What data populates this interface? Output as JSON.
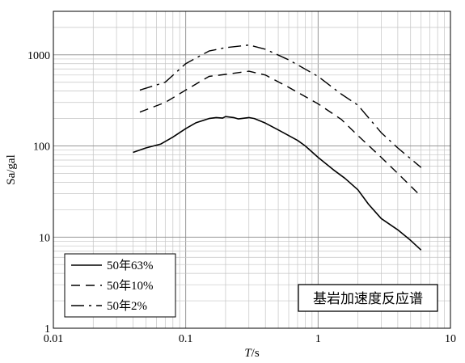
{
  "chart_data": {
    "type": "line",
    "xscale": "log",
    "yscale": "log",
    "xlim": [
      0.01,
      10
    ],
    "ylim": [
      1,
      3000
    ],
    "xlabel_italic": "T",
    "xlabel_rest": "/s",
    "ylabel": "Sa/gal",
    "xticks": [
      {
        "value": 0.01,
        "label": "0.01"
      },
      {
        "value": 0.1,
        "label": "0.1"
      },
      {
        "value": 1,
        "label": "1"
      },
      {
        "value": 10,
        "label": "10"
      }
    ],
    "yticks": [
      {
        "value": 1,
        "label": "1"
      },
      {
        "value": 10,
        "label": "10"
      },
      {
        "value": 100,
        "label": "100"
      },
      {
        "value": 1000,
        "label": "1000"
      }
    ],
    "grid": true,
    "legend_position": "bottom-left",
    "annotation": "基岩加速度反应谱",
    "series": [
      {
        "name": "50年63%",
        "style": "solid",
        "x": [
          0.04,
          0.05,
          0.065,
          0.08,
          0.1,
          0.12,
          0.15,
          0.17,
          0.19,
          0.2,
          0.23,
          0.25,
          0.3,
          0.33,
          0.4,
          0.5,
          0.6,
          0.7,
          0.8,
          1.0,
          1.3,
          1.6,
          2.0,
          2.4,
          3.0,
          4.0,
          5.0,
          6.0
        ],
        "y": [
          85,
          95,
          105,
          125,
          155,
          180,
          200,
          205,
          202,
          210,
          205,
          198,
          205,
          200,
          178,
          150,
          130,
          115,
          100,
          75,
          55,
          44,
          33,
          23,
          16,
          12,
          9.2,
          7.2
        ]
      },
      {
        "name": "50年10%",
        "style": "dashed",
        "x": [
          0.045,
          0.07,
          0.1,
          0.15,
          0.2,
          0.3,
          0.4,
          0.6,
          1.0,
          1.5,
          2.0,
          3.0,
          4.0,
          6.0
        ],
        "y": [
          235,
          300,
          410,
          580,
          610,
          660,
          600,
          440,
          290,
          195,
          130,
          75,
          50,
          28
        ]
      },
      {
        "name": "50年2%",
        "style": "dashdot",
        "x": [
          0.045,
          0.07,
          0.1,
          0.15,
          0.2,
          0.3,
          0.4,
          0.6,
          1.0,
          1.5,
          2.0,
          3.0,
          4.0,
          6.0
        ],
        "y": [
          410,
          500,
          800,
          1100,
          1200,
          1280,
          1150,
          880,
          580,
          370,
          280,
          140,
          95,
          58
        ]
      }
    ]
  }
}
